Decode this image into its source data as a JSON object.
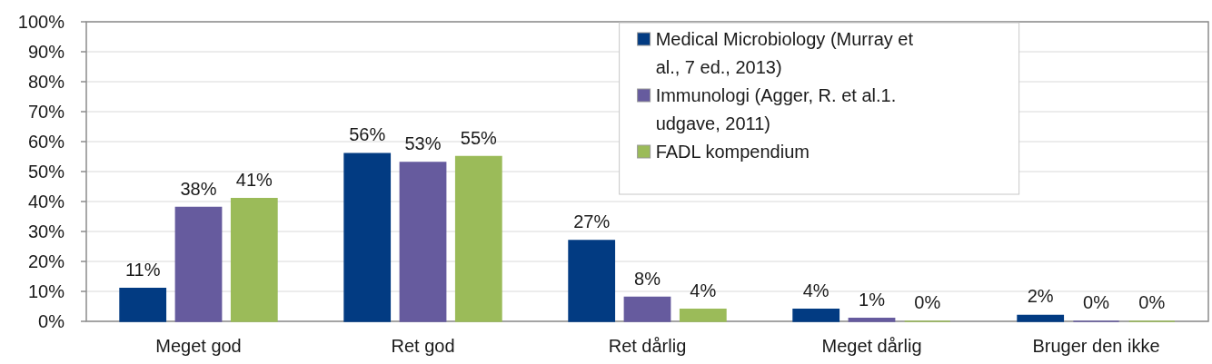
{
  "chart_data": {
    "type": "bar",
    "categories": [
      "Meget god",
      "Ret god",
      "Ret dårlig",
      "Meget dårlig",
      "Bruger den ikke"
    ],
    "series": [
      {
        "name": "Medical Microbiology (Murray et al., 7 ed., 2013)",
        "color": "#023b82",
        "values": [
          11,
          56,
          27,
          4,
          2
        ],
        "value_labels": [
          "11%",
          "56%",
          "27%",
          "4%",
          "2%"
        ]
      },
      {
        "name": "Immunologi (Agger, R. et al.1. udgave, 2011)",
        "color": "#665b9e",
        "values": [
          38,
          53,
          8,
          1,
          0
        ],
        "value_labels": [
          "38%",
          "53%",
          "8%",
          "1%",
          "0%"
        ]
      },
      {
        "name": "FADL kompendium",
        "color": "#9bbb59",
        "values": [
          41,
          55,
          4,
          0,
          0
        ],
        "value_labels": [
          "41%",
          "55%",
          "4%",
          "0%",
          "0%"
        ]
      }
    ],
    "ylim": [
      0,
      100
    ],
    "yticks": [
      {
        "value": 0,
        "label": "0%"
      },
      {
        "value": 10,
        "label": "10%"
      },
      {
        "value": 20,
        "label": "20%"
      },
      {
        "value": 30,
        "label": "30%"
      },
      {
        "value": 40,
        "label": "40%"
      },
      {
        "value": 50,
        "label": "50%"
      },
      {
        "value": 60,
        "label": "60%"
      },
      {
        "value": 70,
        "label": "70%"
      },
      {
        "value": 80,
        "label": "80%"
      },
      {
        "value": 90,
        "label": "90%"
      },
      {
        "value": 100,
        "label": "100%"
      }
    ],
    "grid": "y",
    "legend": "top right"
  }
}
